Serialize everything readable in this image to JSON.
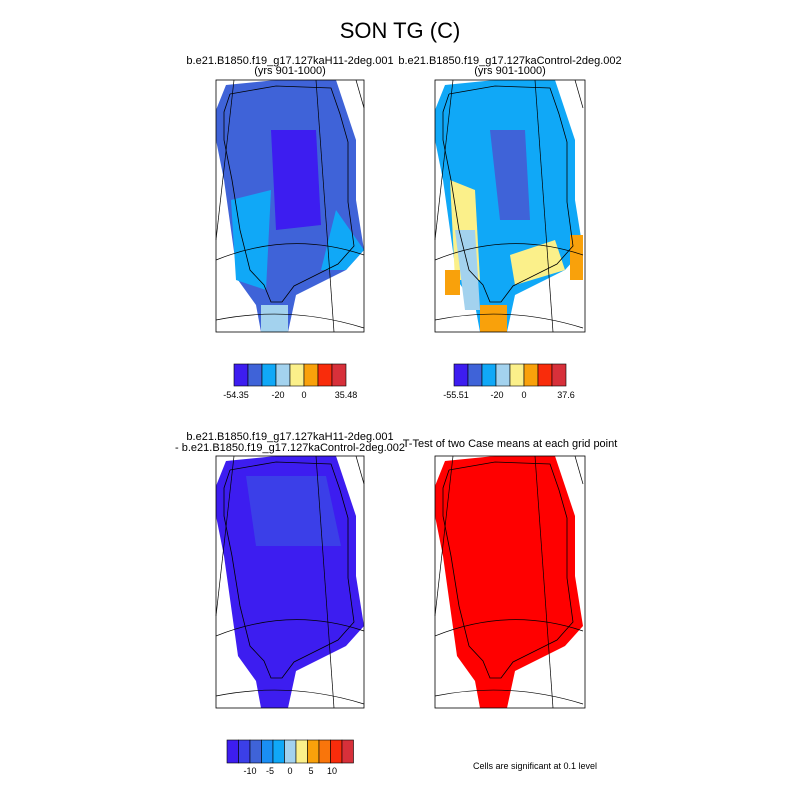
{
  "title": "SON TG (C)",
  "panels": [
    {
      "title": "b.e21.B1850.f19_g17.127kaH11-2deg.001",
      "subtitle": "(yrs 901-1000)",
      "colorbar": {
        "colors": [
          "#3d1df0",
          "#3f63d8",
          "#10a8f7",
          "#a3d2ee",
          "#fbf08a",
          "#f9a10b",
          "#f92c0b",
          "#d7303a"
        ],
        "labels": [
          "-54.35",
          "-20",
          "0",
          "35.48"
        ]
      }
    },
    {
      "title": "b.e21.B1850.f19_g17.127kaControl-2deg.002",
      "subtitle": "(yrs 901-1000)",
      "colorbar": {
        "colors": [
          "#3d1df0",
          "#3f63d8",
          "#10a8f7",
          "#a3d2ee",
          "#fbf08a",
          "#f9a10b",
          "#f92c0b",
          "#d7303a"
        ],
        "labels": [
          "-55.51",
          "-20",
          "0",
          "37.6"
        ]
      }
    },
    {
      "title": "b.e21.B1850.f19_g17.127kaH11-2deg.001",
      "subtitle": "- b.e21.B1850.f19_g17.127kaControl-2deg.002",
      "colorbar": {
        "colors": [
          "#3d1df0",
          "#3b3fe8",
          "#3f63d8",
          "#1a8ef4",
          "#10a8f7",
          "#a3d2ee",
          "#fbf08a",
          "#f9a10b",
          "#f9750b",
          "#f92c0b",
          "#d7303a"
        ],
        "labels": [
          "-10",
          "-5",
          "0",
          "5",
          "10"
        ]
      }
    },
    {
      "title": "T-Test of two Case means at each grid point",
      "note": "Cells are significant at 0.1 level"
    }
  ]
}
